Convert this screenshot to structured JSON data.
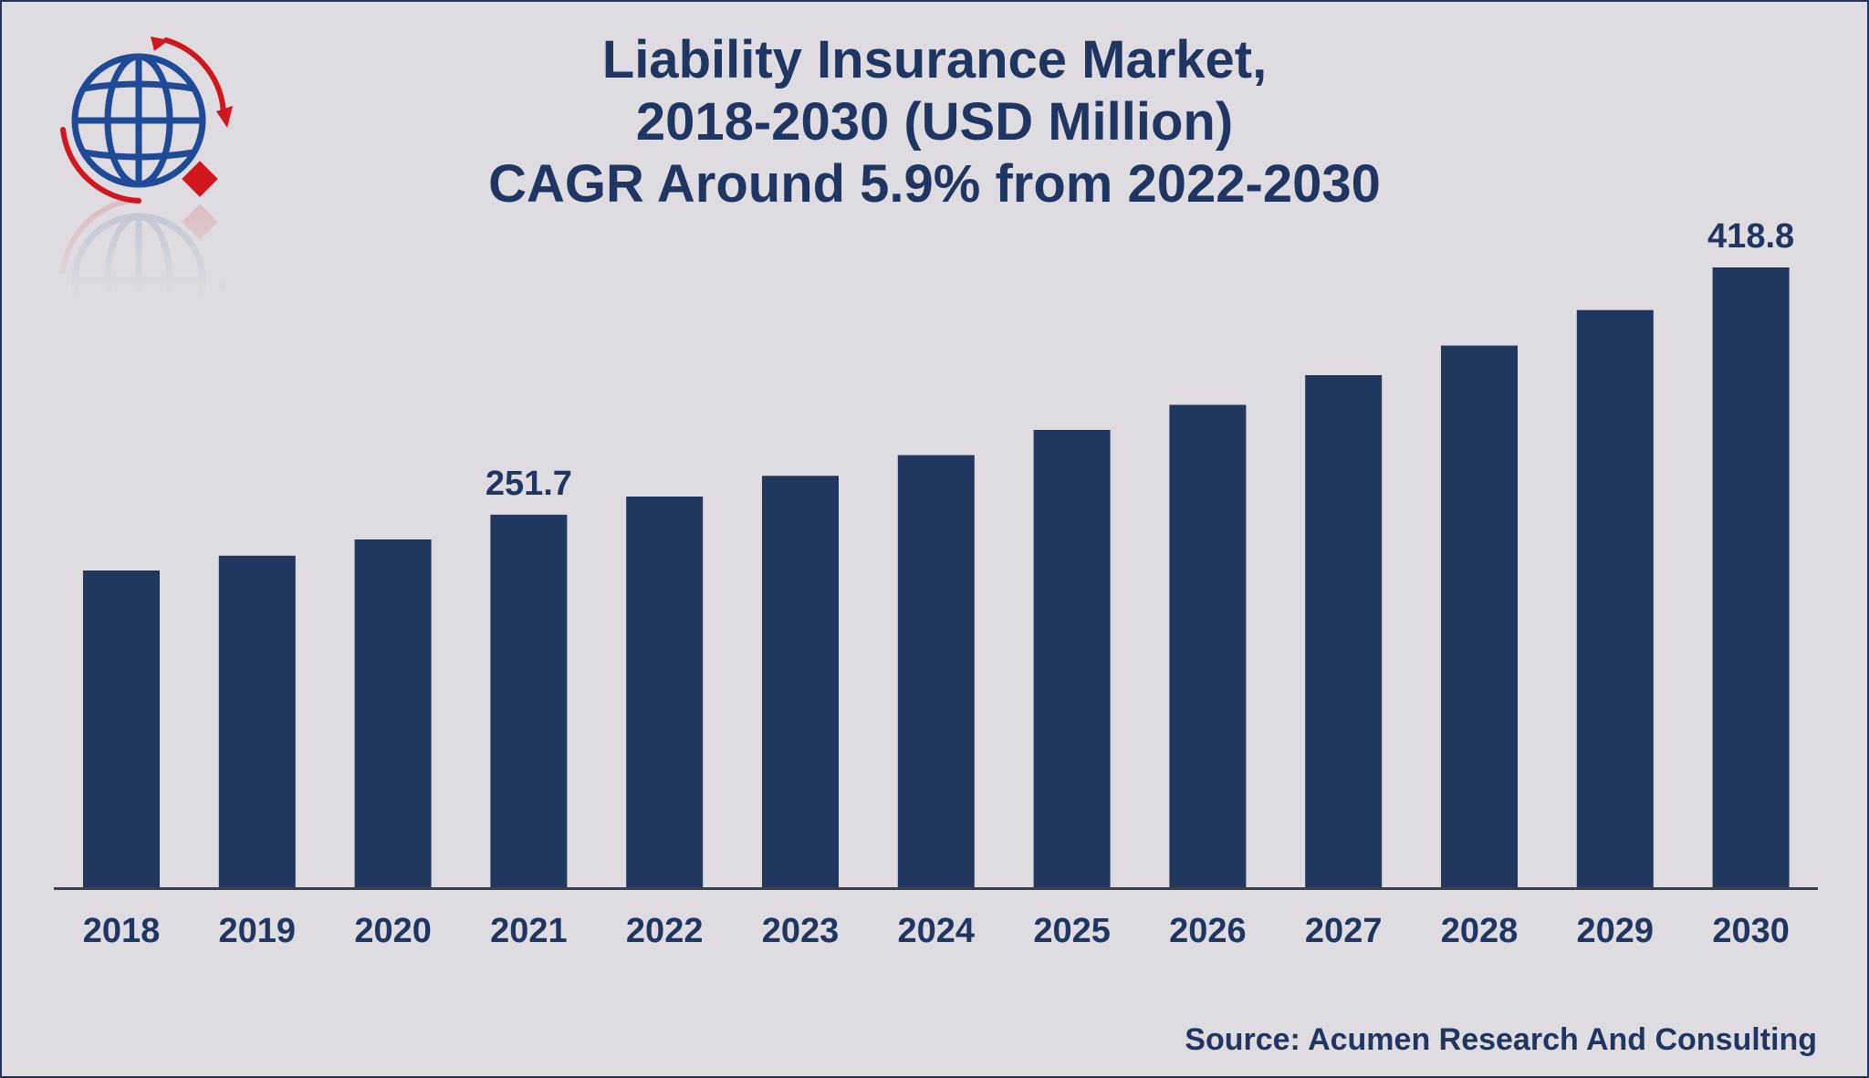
{
  "chart_data": {
    "type": "bar",
    "title_lines": [
      "Liability Insurance Market,",
      "2018-2030 (USD Million)",
      "CAGR Around 5.9% from 2022-2030"
    ],
    "categories": [
      "2018",
      "2019",
      "2020",
      "2021",
      "2022",
      "2023",
      "2024",
      "2025",
      "2026",
      "2027",
      "2028",
      "2029",
      "2030"
    ],
    "values": [
      214,
      224,
      235,
      251.7,
      264,
      278,
      292,
      309,
      326,
      346,
      366,
      390,
      418.8
    ],
    "data_labels": [
      {
        "index": 3,
        "text": "251.7"
      },
      {
        "index": 12,
        "text": "418.8"
      }
    ],
    "ylim": [
      0,
      430
    ],
    "xlabel": "",
    "ylabel": "",
    "grid": false,
    "legend": "none",
    "bar_color": "#20375f",
    "axis_color": "#3a3f4a"
  },
  "source": "Source: Acumen Research And Consulting",
  "logo": {
    "icon": "globe-icon",
    "globe_color": "#1f4a97",
    "accent_color": "#d2161e"
  },
  "text_color": "#1f3662"
}
